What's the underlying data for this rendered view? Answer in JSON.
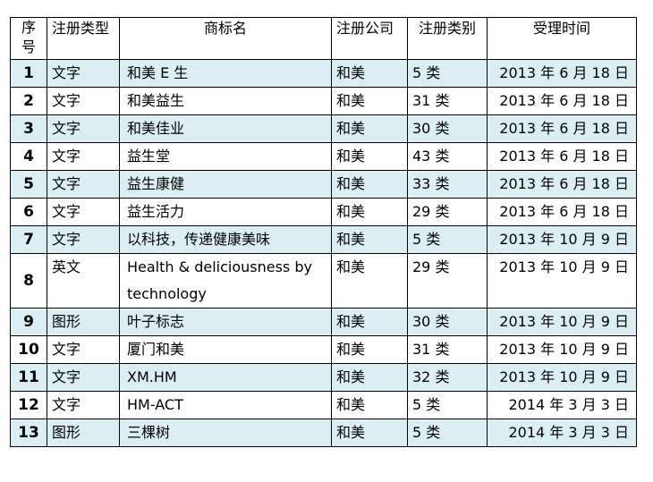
{
  "table": {
    "headers": {
      "no": "序号",
      "type": "注册类型",
      "name": "商标名",
      "company": "注册公司",
      "class": "注册类别",
      "date": "受理时间"
    },
    "rows": [
      {
        "no": "1",
        "type": "文字",
        "name": "和美 E 生",
        "company": "和美",
        "class": "5 类",
        "date": "2013 年 6 月 18 日",
        "shaded": true
      },
      {
        "no": "2",
        "type": "文字",
        "name": "和美益生",
        "company": "和美",
        "class": "31 类",
        "date": "2013 年 6 月 18 日",
        "shaded": false
      },
      {
        "no": "3",
        "type": "文字",
        "name": "和美佳业",
        "company": "和美",
        "class": "30 类",
        "date": "2013 年 6 月 18 日",
        "shaded": true
      },
      {
        "no": "4",
        "type": "文字",
        "name": "益生堂",
        "company": "和美",
        "class": "43 类",
        "date": "2013 年 6 月 18 日",
        "shaded": false
      },
      {
        "no": "5",
        "type": "文字",
        "name": "益生康健",
        "company": "和美",
        "class": "33 类",
        "date": "2013 年 6 月 18 日",
        "shaded": true
      },
      {
        "no": "6",
        "type": "文字",
        "name": "益生活力",
        "company": "和美",
        "class": "29 类",
        "date": "2013 年 6 月 18 日",
        "shaded": false
      },
      {
        "no": "7",
        "type": "文字",
        "name": "以科技，传递健康美味",
        "company": "和美",
        "class": "5 类",
        "date": "2013 年 10 月 9 日",
        "shaded": true
      },
      {
        "no": "8",
        "type": "英文",
        "name": "Health & deliciousness by technology",
        "company": "和美",
        "class": "29 类",
        "date": "2013 年 10 月 9 日",
        "shaded": false
      },
      {
        "no": "9",
        "type": "图形",
        "name": "叶子标志",
        "company": "和美",
        "class": "30 类",
        "date": "2013 年 10 月 9 日",
        "shaded": true
      },
      {
        "no": "10",
        "type": "文字",
        "name": "厦门和美",
        "company": "和美",
        "class": "31 类",
        "date": "2013 年 10 月 9 日",
        "shaded": false
      },
      {
        "no": "11",
        "type": "文字",
        "name": "XM.HM",
        "company": "和美",
        "class": "32 类",
        "date": "2013 年 10 月 9 日",
        "shaded": true
      },
      {
        "no": "12",
        "type": "文字",
        "name": "HM-ACT",
        "company": "和美",
        "class": "5 类",
        "date": "2014 年 3 月 3 日",
        "shaded": false
      },
      {
        "no": "13",
        "type": "图形",
        "name": "三棵树",
        "company": "和美",
        "class": "5 类",
        "date": "2014 年 3 月 3 日",
        "shaded": true
      }
    ]
  }
}
